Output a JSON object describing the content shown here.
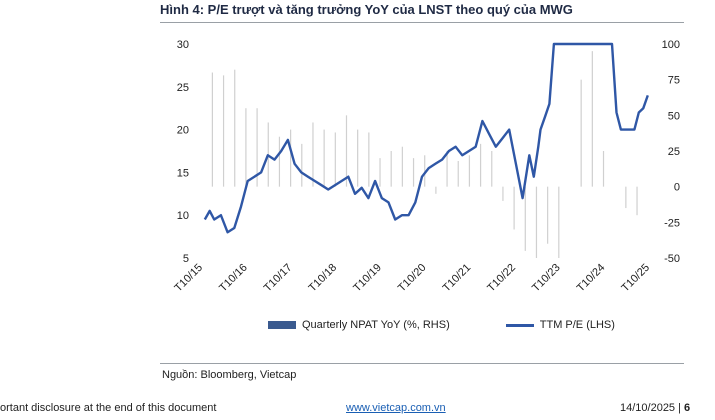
{
  "title": "Hình 4: P/E trượt và tăng trưởng YoY của LNST theo quý của MWG",
  "source": "Nguồn: Bloomberg, Vietcap",
  "footer": {
    "disclaimer": "ortant disclosure at the end of this document",
    "website": "www.vietcap.com.vn",
    "date": "14/10/2025",
    "page": "6"
  },
  "colors": {
    "bar": "#d0d0d0",
    "line": "#2f57a6",
    "legend_bar": "#3a5a8f"
  },
  "chart_data": {
    "type": "line",
    "title": "",
    "xlabel": "",
    "ylabel": "",
    "x_ticks": [
      "T10/15",
      "T10/16",
      "T10/17",
      "T10/18",
      "T10/19",
      "T10/20",
      "T10/21",
      "T10/22",
      "T10/23",
      "T10/24",
      "T10/25"
    ],
    "y_left": {
      "range": [
        5,
        30
      ],
      "ticks": [
        5,
        10,
        15,
        20,
        25,
        30
      ]
    },
    "y_right": {
      "range": [
        -50,
        100
      ],
      "ticks": [
        -50,
        -25,
        0,
        25,
        50,
        75,
        100
      ]
    },
    "grid": false,
    "legend_position": "bottom",
    "series": [
      {
        "name": "Quarterly NPAT YoY (%, RHS)",
        "type": "bar",
        "axis": "right",
        "x": [
          2015.96,
          2016.21,
          2016.46,
          2016.71,
          2016.96,
          2017.21,
          2017.46,
          2017.71,
          2017.96,
          2018.21,
          2018.46,
          2018.71,
          2018.96,
          2019.21,
          2019.46,
          2019.71,
          2019.96,
          2020.21,
          2020.46,
          2020.71,
          2020.96,
          2021.21,
          2021.46,
          2021.71,
          2021.96,
          2022.21,
          2022.46,
          2022.71,
          2022.96,
          2023.21,
          2023.46,
          2023.71,
          2023.96,
          2024.21,
          2024.46,
          2024.71,
          2024.96,
          2025.21,
          2025.46
        ],
        "values": [
          80,
          78,
          82,
          55,
          55,
          45,
          35,
          40,
          30,
          45,
          40,
          38,
          50,
          40,
          38,
          20,
          25,
          28,
          20,
          22,
          -5,
          25,
          18,
          22,
          30,
          25,
          -10,
          -30,
          -45,
          -50,
          -40,
          -50,
          0,
          75,
          95,
          25,
          0,
          -15,
          -20
        ]
      },
      {
        "name": "TTM P/E (LHS)",
        "type": "line",
        "axis": "left",
        "x": [
          2015.79,
          2015.9,
          2016.0,
          2016.15,
          2016.3,
          2016.45,
          2016.6,
          2016.75,
          2016.9,
          2017.05,
          2017.2,
          2017.35,
          2017.5,
          2017.65,
          2017.8,
          2017.95,
          2018.1,
          2018.25,
          2018.4,
          2018.55,
          2018.7,
          2018.85,
          2019.0,
          2019.15,
          2019.3,
          2019.45,
          2019.6,
          2019.75,
          2019.9,
          2020.05,
          2020.2,
          2020.35,
          2020.5,
          2020.65,
          2020.8,
          2020.95,
          2021.1,
          2021.25,
          2021.4,
          2021.55,
          2021.7,
          2021.85,
          2022.0,
          2022.15,
          2022.3,
          2022.45,
          2022.6,
          2022.75,
          2022.9,
          2023.05,
          2023.15,
          2023.25,
          2023.3,
          2023.4,
          2023.5,
          2023.6,
          2023.7,
          2023.8,
          2023.9,
          2024.0,
          2024.1,
          2024.2,
          2024.3,
          2024.4,
          2024.5,
          2024.6,
          2024.7,
          2024.8,
          2024.9,
          2025.0,
          2025.1,
          2025.2,
          2025.3,
          2025.4,
          2025.5,
          2025.6,
          2025.7
        ],
        "values": [
          9.5,
          10.5,
          9.5,
          10,
          8,
          8.5,
          11,
          14,
          14.5,
          15,
          17,
          16.5,
          17.5,
          18.8,
          16,
          15,
          14.5,
          14,
          13.5,
          13,
          13.5,
          14,
          14.5,
          12.5,
          13.2,
          12,
          14,
          12,
          11.5,
          9.5,
          10,
          10,
          11.5,
          14.5,
          15.5,
          16,
          16.5,
          17.5,
          18,
          17,
          17.5,
          18,
          21,
          19.5,
          18,
          19,
          20,
          16,
          12,
          17,
          14.5,
          18,
          20,
          21.5,
          23,
          30,
          30,
          30,
          30,
          30,
          30,
          30,
          30,
          30,
          30,
          30,
          30,
          30,
          30,
          22,
          20,
          20,
          20,
          20,
          22,
          22.5,
          24
        ]
      }
    ]
  }
}
